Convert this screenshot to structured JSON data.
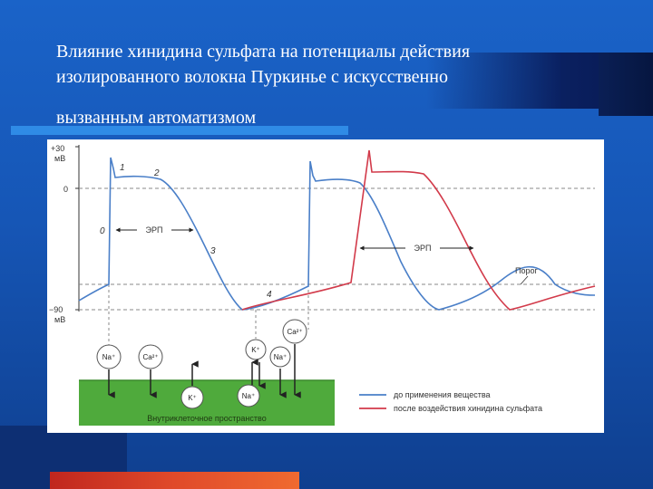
{
  "slide": {
    "title_lines": [
      "Влияние хинидина сульфата на потенциалы действия",
      "изолированного волокна Пуркинье с искусственно",
      "вызванным автоматизмом"
    ]
  },
  "figure": {
    "y_top_label": "+30",
    "y_top_unit": "мВ",
    "y_zero_label": "0",
    "y_bottom_label": "−90",
    "y_bottom_unit": "мВ",
    "phase_labels": [
      "0",
      "1",
      "2",
      "3",
      "4"
    ],
    "erp_label_1": "ЭРП",
    "erp_label_2": "ЭРП",
    "threshold_label": "Порог",
    "ions": {
      "na_in": "Na⁺",
      "ca_in": "Ca²⁺",
      "k_out_left": "K⁺",
      "k_out_right": "K⁺",
      "na_right": "Na⁺",
      "na_pump": "Na⁺",
      "ca_right": "Ca²⁺"
    },
    "membrane_label": "Внутриклеточное пространство",
    "legend": [
      {
        "label": "до применения вещества",
        "color": "#4a7fc8"
      },
      {
        "label": "после воздействия хинидина сульфата",
        "color": "#d23a4a"
      }
    ],
    "colors": {
      "membrane": "#4faa3c",
      "guide": "#888888"
    }
  }
}
